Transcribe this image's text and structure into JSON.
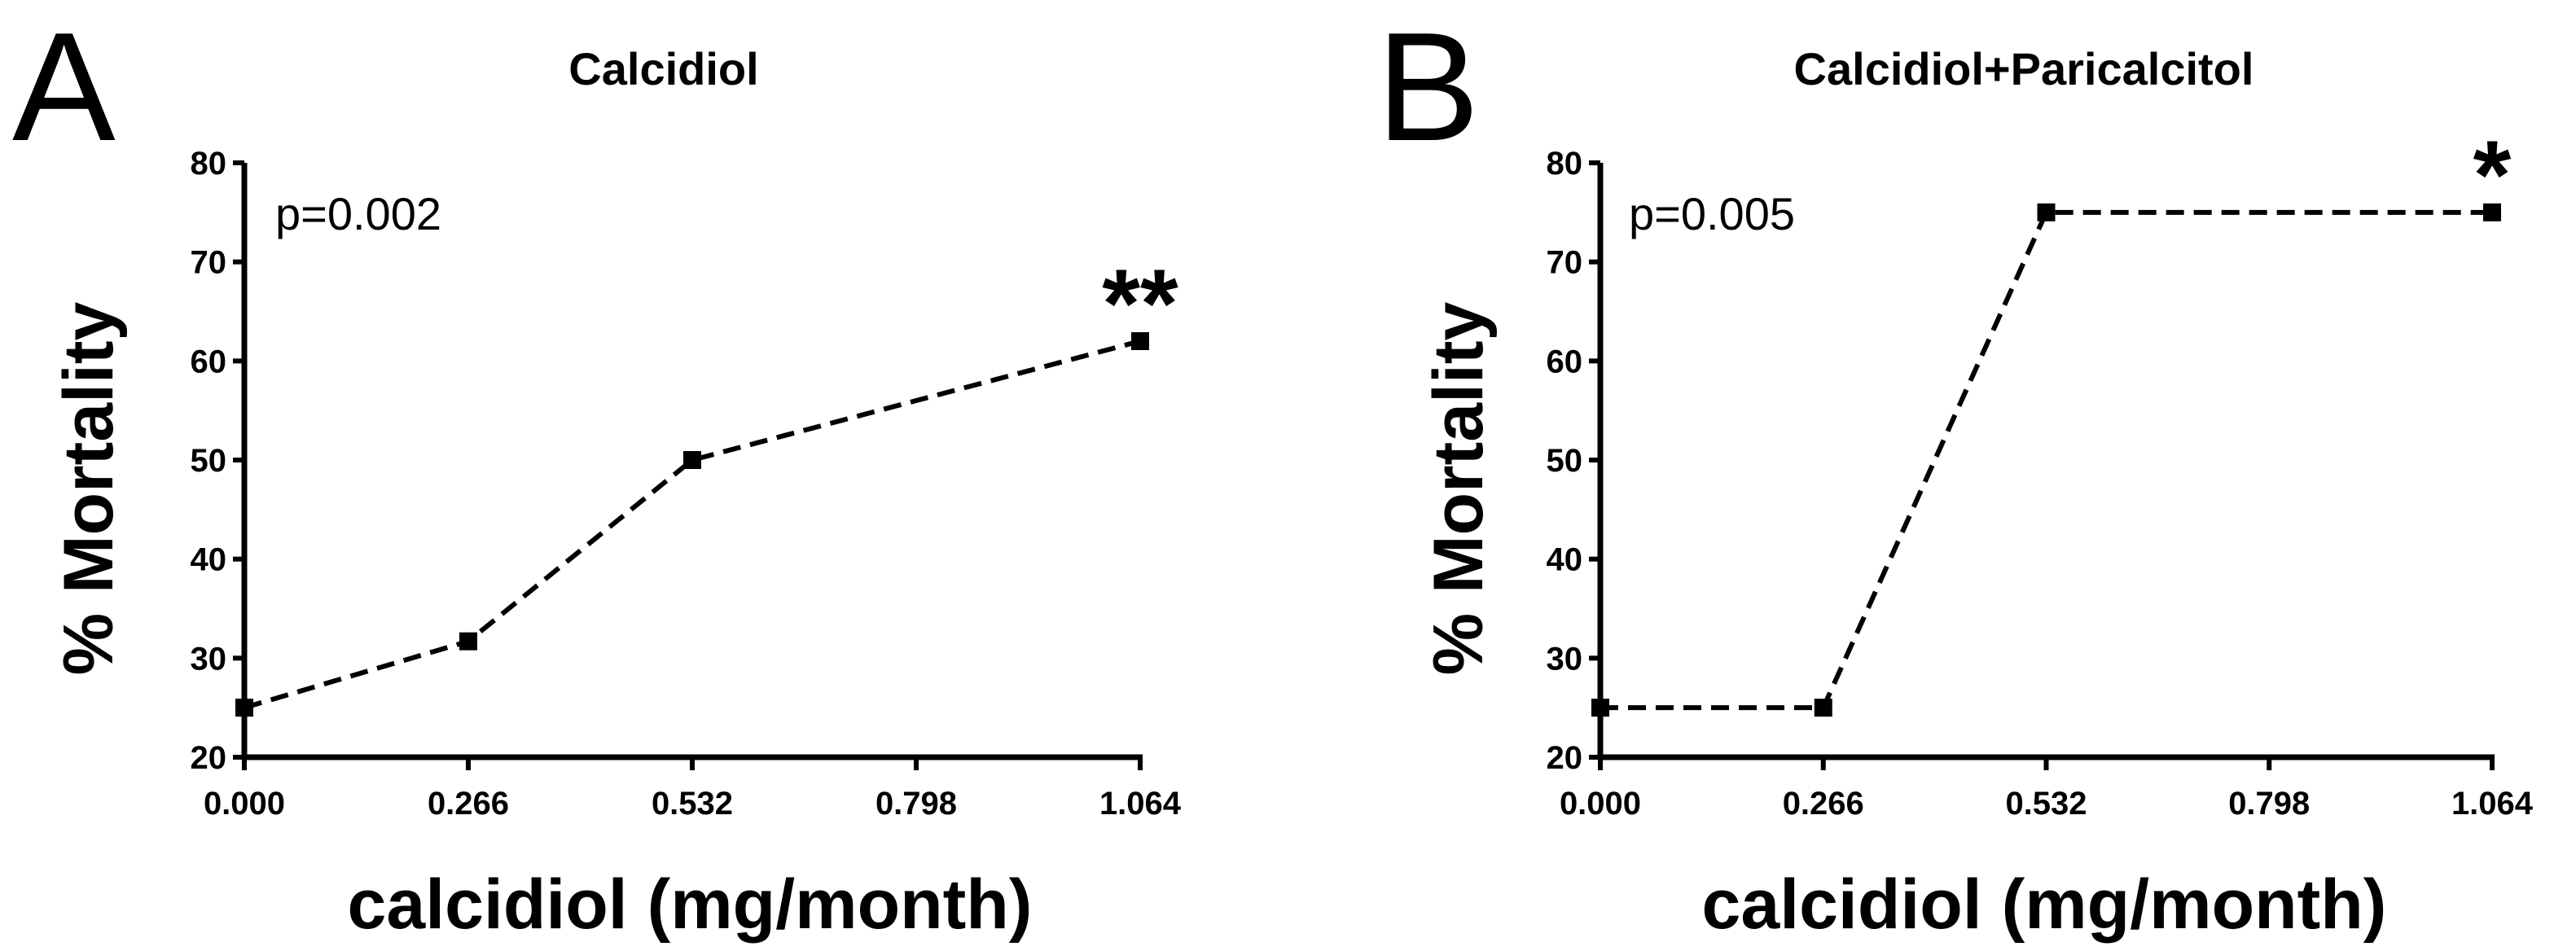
{
  "chart_data": [
    {
      "type": "line",
      "panel_label": "A",
      "title": "Calcidiol",
      "annotation": "p=0.002",
      "xlabel": "calcidiol (mg/month)",
      "ylabel": "% Mortality",
      "x": [
        0.0,
        0.266,
        0.532,
        1.064
      ],
      "values": [
        25,
        31.7,
        50,
        62
      ],
      "xlim": [
        0,
        1.064
      ],
      "ylim": [
        20,
        80
      ],
      "xticks": [
        "0.000",
        "0.266",
        "0.532",
        "0.798",
        "1.064"
      ],
      "yticks": [
        "20",
        "30",
        "40",
        "50",
        "60",
        "70",
        "80"
      ],
      "marker": "square",
      "line_style": "dashed",
      "significance": {
        "x": 1.064,
        "label": "**"
      }
    },
    {
      "type": "line",
      "panel_label": "B",
      "title": "Calcidiol+Paricalcitol",
      "annotation": "p=0.005",
      "xlabel": "calcidiol (mg/month)",
      "ylabel": "% Mortality",
      "x": [
        0.0,
        0.266,
        0.532,
        1.064
      ],
      "values": [
        25,
        25,
        75,
        75
      ],
      "xlim": [
        0,
        1.064
      ],
      "ylim": [
        20,
        80
      ],
      "xticks": [
        "0.000",
        "0.266",
        "0.532",
        "0.798",
        "1.064"
      ],
      "yticks": [
        "20",
        "30",
        "40",
        "50",
        "60",
        "70",
        "80"
      ],
      "marker": "square",
      "line_style": "dashed",
      "significance": {
        "x": 1.064,
        "label": "*"
      }
    }
  ]
}
